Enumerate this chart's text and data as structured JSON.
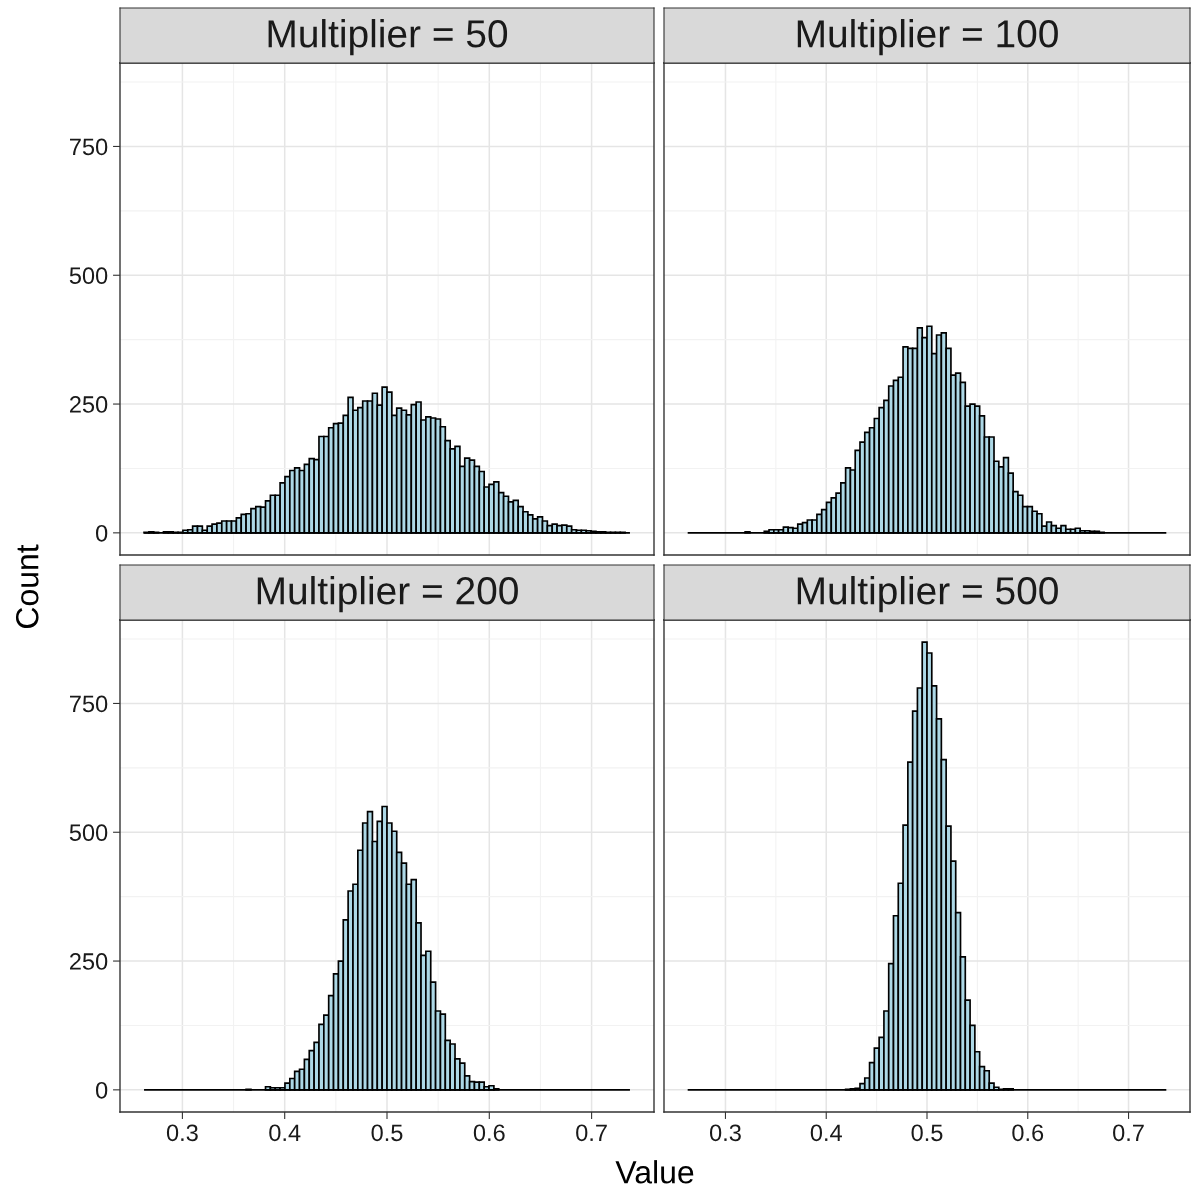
{
  "chart_data": [
    {
      "type": "histogram",
      "title": "Multiplier = 50",
      "ylabel": "Count",
      "color": "#add8e6",
      "grid": true,
      "tick_labels": "y",
      "xlim": [
        0.239,
        0.761
      ],
      "ylim": [
        -43,
        912
      ],
      "xticks": [
        0.3,
        0.4,
        0.5,
        0.6,
        0.7
      ],
      "yticks": [
        0,
        250,
        500,
        750
      ],
      "bins": [
        0.2625,
        0.26725,
        0.272,
        0.27675,
        0.2815,
        0.28625,
        0.291,
        0.29575,
        0.3005,
        0.30525,
        0.31,
        0.31475,
        0.3195,
        0.32425,
        0.329,
        0.33375,
        0.3385,
        0.34325,
        0.348,
        0.35275,
        0.3575,
        0.36225,
        0.367,
        0.37175,
        0.3765,
        0.38125,
        0.386,
        0.39075,
        0.3955,
        0.40025,
        0.405,
        0.40975,
        0.4145,
        0.41925,
        0.424,
        0.42875,
        0.4335,
        0.43825,
        0.443,
        0.44775,
        0.4525,
        0.45725,
        0.462,
        0.46675,
        0.4715,
        0.47625,
        0.481,
        0.48575,
        0.4905,
        0.49525,
        0.5,
        0.50475,
        0.5095,
        0.51425,
        0.519,
        0.52375,
        0.5285,
        0.53325,
        0.538,
        0.54275,
        0.5475,
        0.55225,
        0.557,
        0.56175,
        0.5665,
        0.57125,
        0.576,
        0.58075,
        0.5855,
        0.59025,
        0.595,
        0.59975,
        0.6045,
        0.60925,
        0.614,
        0.61875,
        0.6235,
        0.62825,
        0.633,
        0.63775,
        0.6425,
        0.64725,
        0.652,
        0.65675,
        0.6615,
        0.66625,
        0.671,
        0.67575,
        0.6805,
        0.68525,
        0.69,
        0.69475,
        0.6995,
        0.70425,
        0.709,
        0.71375,
        0.7185,
        0.72325,
        0.728,
        0.73275,
        0.7375
      ],
      "values": [
        1,
        2,
        1,
        0,
        2,
        2,
        1,
        1,
        5,
        6,
        13,
        13,
        5,
        13,
        17,
        19,
        23,
        23,
        23,
        29,
        36,
        37,
        47,
        51,
        50,
        62,
        73,
        73,
        97,
        109,
        121,
        126,
        121,
        133,
        144,
        142,
        187,
        187,
        204,
        212,
        213,
        228,
        263,
        238,
        243,
        256,
        256,
        271,
        248,
        283,
        273,
        228,
        242,
        238,
        229,
        249,
        254,
        219,
        225,
        223,
        221,
        206,
        179,
        163,
        168,
        129,
        145,
        141,
        129,
        119,
        89,
        94,
        99,
        78,
        71,
        60,
        63,
        51,
        41,
        35,
        27,
        31,
        23,
        14,
        17,
        14,
        15,
        13,
        6,
        5,
        5,
        4,
        3,
        2,
        2,
        1,
        1,
        1,
        1,
        0
      ]
    },
    {
      "type": "histogram",
      "title": "Multiplier = 100",
      "color": "#add8e6",
      "grid": true,
      "tick_labels": false,
      "xlim": [
        0.239,
        0.761
      ],
      "ylim": [
        -43,
        912
      ],
      "xticks": [
        0.3,
        0.4,
        0.5,
        0.6,
        0.7
      ],
      "yticks": [
        0,
        250,
        500,
        750
      ],
      "bins": [
        0.2625,
        0.26725,
        0.272,
        0.27675,
        0.2815,
        0.28625,
        0.291,
        0.29575,
        0.3005,
        0.30525,
        0.31,
        0.31475,
        0.3195,
        0.32425,
        0.329,
        0.33375,
        0.3385,
        0.34325,
        0.348,
        0.35275,
        0.3575,
        0.36225,
        0.367,
        0.37175,
        0.3765,
        0.38125,
        0.386,
        0.39075,
        0.3955,
        0.40025,
        0.405,
        0.40975,
        0.4145,
        0.41925,
        0.424,
        0.42875,
        0.4335,
        0.43825,
        0.443,
        0.44775,
        0.4525,
        0.45725,
        0.462,
        0.46675,
        0.4715,
        0.47625,
        0.481,
        0.48575,
        0.4905,
        0.49525,
        0.5,
        0.50475,
        0.5095,
        0.51425,
        0.519,
        0.52375,
        0.5285,
        0.53325,
        0.538,
        0.54275,
        0.5475,
        0.55225,
        0.557,
        0.56175,
        0.5665,
        0.57125,
        0.576,
        0.58075,
        0.5855,
        0.59025,
        0.595,
        0.59975,
        0.6045,
        0.60925,
        0.614,
        0.61875,
        0.6235,
        0.62825,
        0.633,
        0.63775,
        0.6425,
        0.64725,
        0.652,
        0.65675,
        0.6615,
        0.66625,
        0.671,
        0.67575,
        0.6805,
        0.68525,
        0.69,
        0.69475,
        0.6995,
        0.70425,
        0.709,
        0.71375,
        0.7185,
        0.72325,
        0.728,
        0.73275,
        0.7375
      ],
      "values": [
        0,
        0,
        0,
        0,
        0,
        0,
        0,
        0,
        0,
        0,
        0,
        0,
        2,
        0,
        0,
        0,
        3,
        6,
        6,
        6,
        11,
        10,
        9,
        17,
        20,
        25,
        25,
        36,
        45,
        59,
        68,
        77,
        97,
        126,
        122,
        160,
        176,
        195,
        204,
        222,
        243,
        257,
        285,
        296,
        302,
        361,
        358,
        358,
        398,
        379,
        401,
        348,
        384,
        388,
        358,
        306,
        310,
        292,
        246,
        250,
        246,
        227,
        186,
        186,
        139,
        128,
        146,
        116,
        80,
        73,
        51,
        51,
        42,
        37,
        13,
        21,
        14,
        9,
        14,
        7,
        7,
        9,
        4,
        4,
        3,
        3,
        1,
        0,
        0,
        0,
        0,
        0,
        0,
        0,
        0,
        0,
        0,
        0,
        0,
        0
      ]
    },
    {
      "type": "histogram",
      "title": "Multiplier = 200",
      "xlabel": "Value",
      "color": "#add8e6",
      "grid": true,
      "xlim": [
        0.239,
        0.761
      ],
      "ylim": [
        -43,
        912
      ],
      "xticks": [
        0.3,
        0.4,
        0.5,
        0.6,
        0.7
      ],
      "yticks": [
        0,
        250,
        500,
        750
      ],
      "bins": [
        0.2625,
        0.26725,
        0.272,
        0.27675,
        0.2815,
        0.28625,
        0.291,
        0.29575,
        0.3005,
        0.30525,
        0.31,
        0.31475,
        0.3195,
        0.32425,
        0.329,
        0.33375,
        0.3385,
        0.34325,
        0.348,
        0.35275,
        0.3575,
        0.36225,
        0.367,
        0.37175,
        0.3765,
        0.38125,
        0.386,
        0.39075,
        0.3955,
        0.40025,
        0.405,
        0.40975,
        0.4145,
        0.41925,
        0.424,
        0.42875,
        0.4335,
        0.43825,
        0.443,
        0.44775,
        0.4525,
        0.45725,
        0.462,
        0.46675,
        0.4715,
        0.47625,
        0.481,
        0.48575,
        0.4905,
        0.49525,
        0.5,
        0.50475,
        0.5095,
        0.51425,
        0.519,
        0.52375,
        0.5285,
        0.53325,
        0.538,
        0.54275,
        0.5475,
        0.55225,
        0.557,
        0.56175,
        0.5665,
        0.57125,
        0.576,
        0.58075,
        0.5855,
        0.59025,
        0.595,
        0.59975,
        0.6045,
        0.60925,
        0.614,
        0.61875,
        0.6235,
        0.62825,
        0.633,
        0.63775,
        0.6425,
        0.64725,
        0.652,
        0.65675,
        0.6615,
        0.66625,
        0.671,
        0.67575,
        0.6805,
        0.68525,
        0.69,
        0.69475,
        0.6995,
        0.70425,
        0.709,
        0.71375,
        0.7185,
        0.72325,
        0.728,
        0.73275,
        0.7375
      ],
      "values": [
        0,
        0,
        0,
        0,
        0,
        0,
        0,
        0,
        0,
        0,
        0,
        0,
        0,
        0,
        0,
        0,
        0,
        0,
        0,
        0,
        0,
        1,
        0,
        0,
        0,
        6,
        4,
        4,
        4,
        13,
        22,
        36,
        40,
        59,
        76,
        92,
        127,
        145,
        183,
        225,
        250,
        330,
        386,
        399,
        465,
        518,
        540,
        482,
        521,
        550,
        518,
        502,
        461,
        440,
        399,
        408,
        324,
        261,
        269,
        209,
        153,
        147,
        96,
        89,
        60,
        52,
        27,
        16,
        15,
        15,
        6,
        8,
        2,
        0,
        0,
        0,
        0,
        0,
        0,
        0,
        0,
        0,
        0,
        0,
        0,
        0,
        0,
        0,
        0,
        0,
        0,
        0,
        0,
        0,
        0,
        0,
        0,
        0,
        0,
        0
      ]
    },
    {
      "type": "histogram",
      "title": "Multiplier = 500",
      "color": "#add8e6",
      "grid": true,
      "tick_labels": "x",
      "xlim": [
        0.239,
        0.761
      ],
      "ylim": [
        -43,
        912
      ],
      "xticks": [
        0.3,
        0.4,
        0.5,
        0.6,
        0.7
      ],
      "yticks": [
        0,
        250,
        500,
        750
      ],
      "bins": [
        0.2625,
        0.26725,
        0.272,
        0.27675,
        0.2815,
        0.28625,
        0.291,
        0.29575,
        0.3005,
        0.30525,
        0.31,
        0.31475,
        0.3195,
        0.32425,
        0.329,
        0.33375,
        0.3385,
        0.34325,
        0.348,
        0.35275,
        0.3575,
        0.36225,
        0.367,
        0.37175,
        0.3765,
        0.38125,
        0.386,
        0.39075,
        0.3955,
        0.40025,
        0.405,
        0.40975,
        0.4145,
        0.41925,
        0.424,
        0.42875,
        0.4335,
        0.43825,
        0.443,
        0.44775,
        0.4525,
        0.45725,
        0.462,
        0.46675,
        0.4715,
        0.47625,
        0.481,
        0.48575,
        0.4905,
        0.49525,
        0.5,
        0.50475,
        0.5095,
        0.51425,
        0.519,
        0.52375,
        0.5285,
        0.53325,
        0.538,
        0.54275,
        0.5475,
        0.55225,
        0.557,
        0.56175,
        0.5665,
        0.57125,
        0.576,
        0.58075,
        0.5855,
        0.59025,
        0.595,
        0.59975,
        0.6045,
        0.60925,
        0.614,
        0.61875,
        0.6235,
        0.62825,
        0.633,
        0.63775,
        0.6425,
        0.64725,
        0.652,
        0.65675,
        0.6615,
        0.66625,
        0.671,
        0.67575,
        0.6805,
        0.68525,
        0.69,
        0.69475,
        0.6995,
        0.70425,
        0.709,
        0.71375,
        0.7185,
        0.72325,
        0.728,
        0.73275,
        0.7375
      ],
      "values": [
        0,
        0,
        0,
        0,
        0,
        0,
        0,
        0,
        0,
        0,
        0,
        0,
        0,
        0,
        0,
        0,
        0,
        0,
        0,
        0,
        0,
        0,
        0,
        0,
        0,
        0,
        0,
        0,
        0,
        0,
        0,
        0,
        0,
        1,
        2,
        3,
        12,
        23,
        53,
        81,
        102,
        153,
        245,
        338,
        401,
        514,
        636,
        735,
        780,
        869,
        848,
        784,
        720,
        641,
        512,
        444,
        344,
        258,
        174,
        125,
        74,
        45,
        37,
        13,
        5,
        1,
        2,
        2,
        0,
        0,
        0,
        0,
        0,
        0,
        0,
        0,
        0,
        0,
        0,
        0,
        0,
        0,
        0,
        0,
        0,
        0,
        0,
        0,
        0,
        0,
        0,
        0,
        0,
        0,
        0,
        0,
        0,
        0,
        0,
        0
      ]
    }
  ]
}
